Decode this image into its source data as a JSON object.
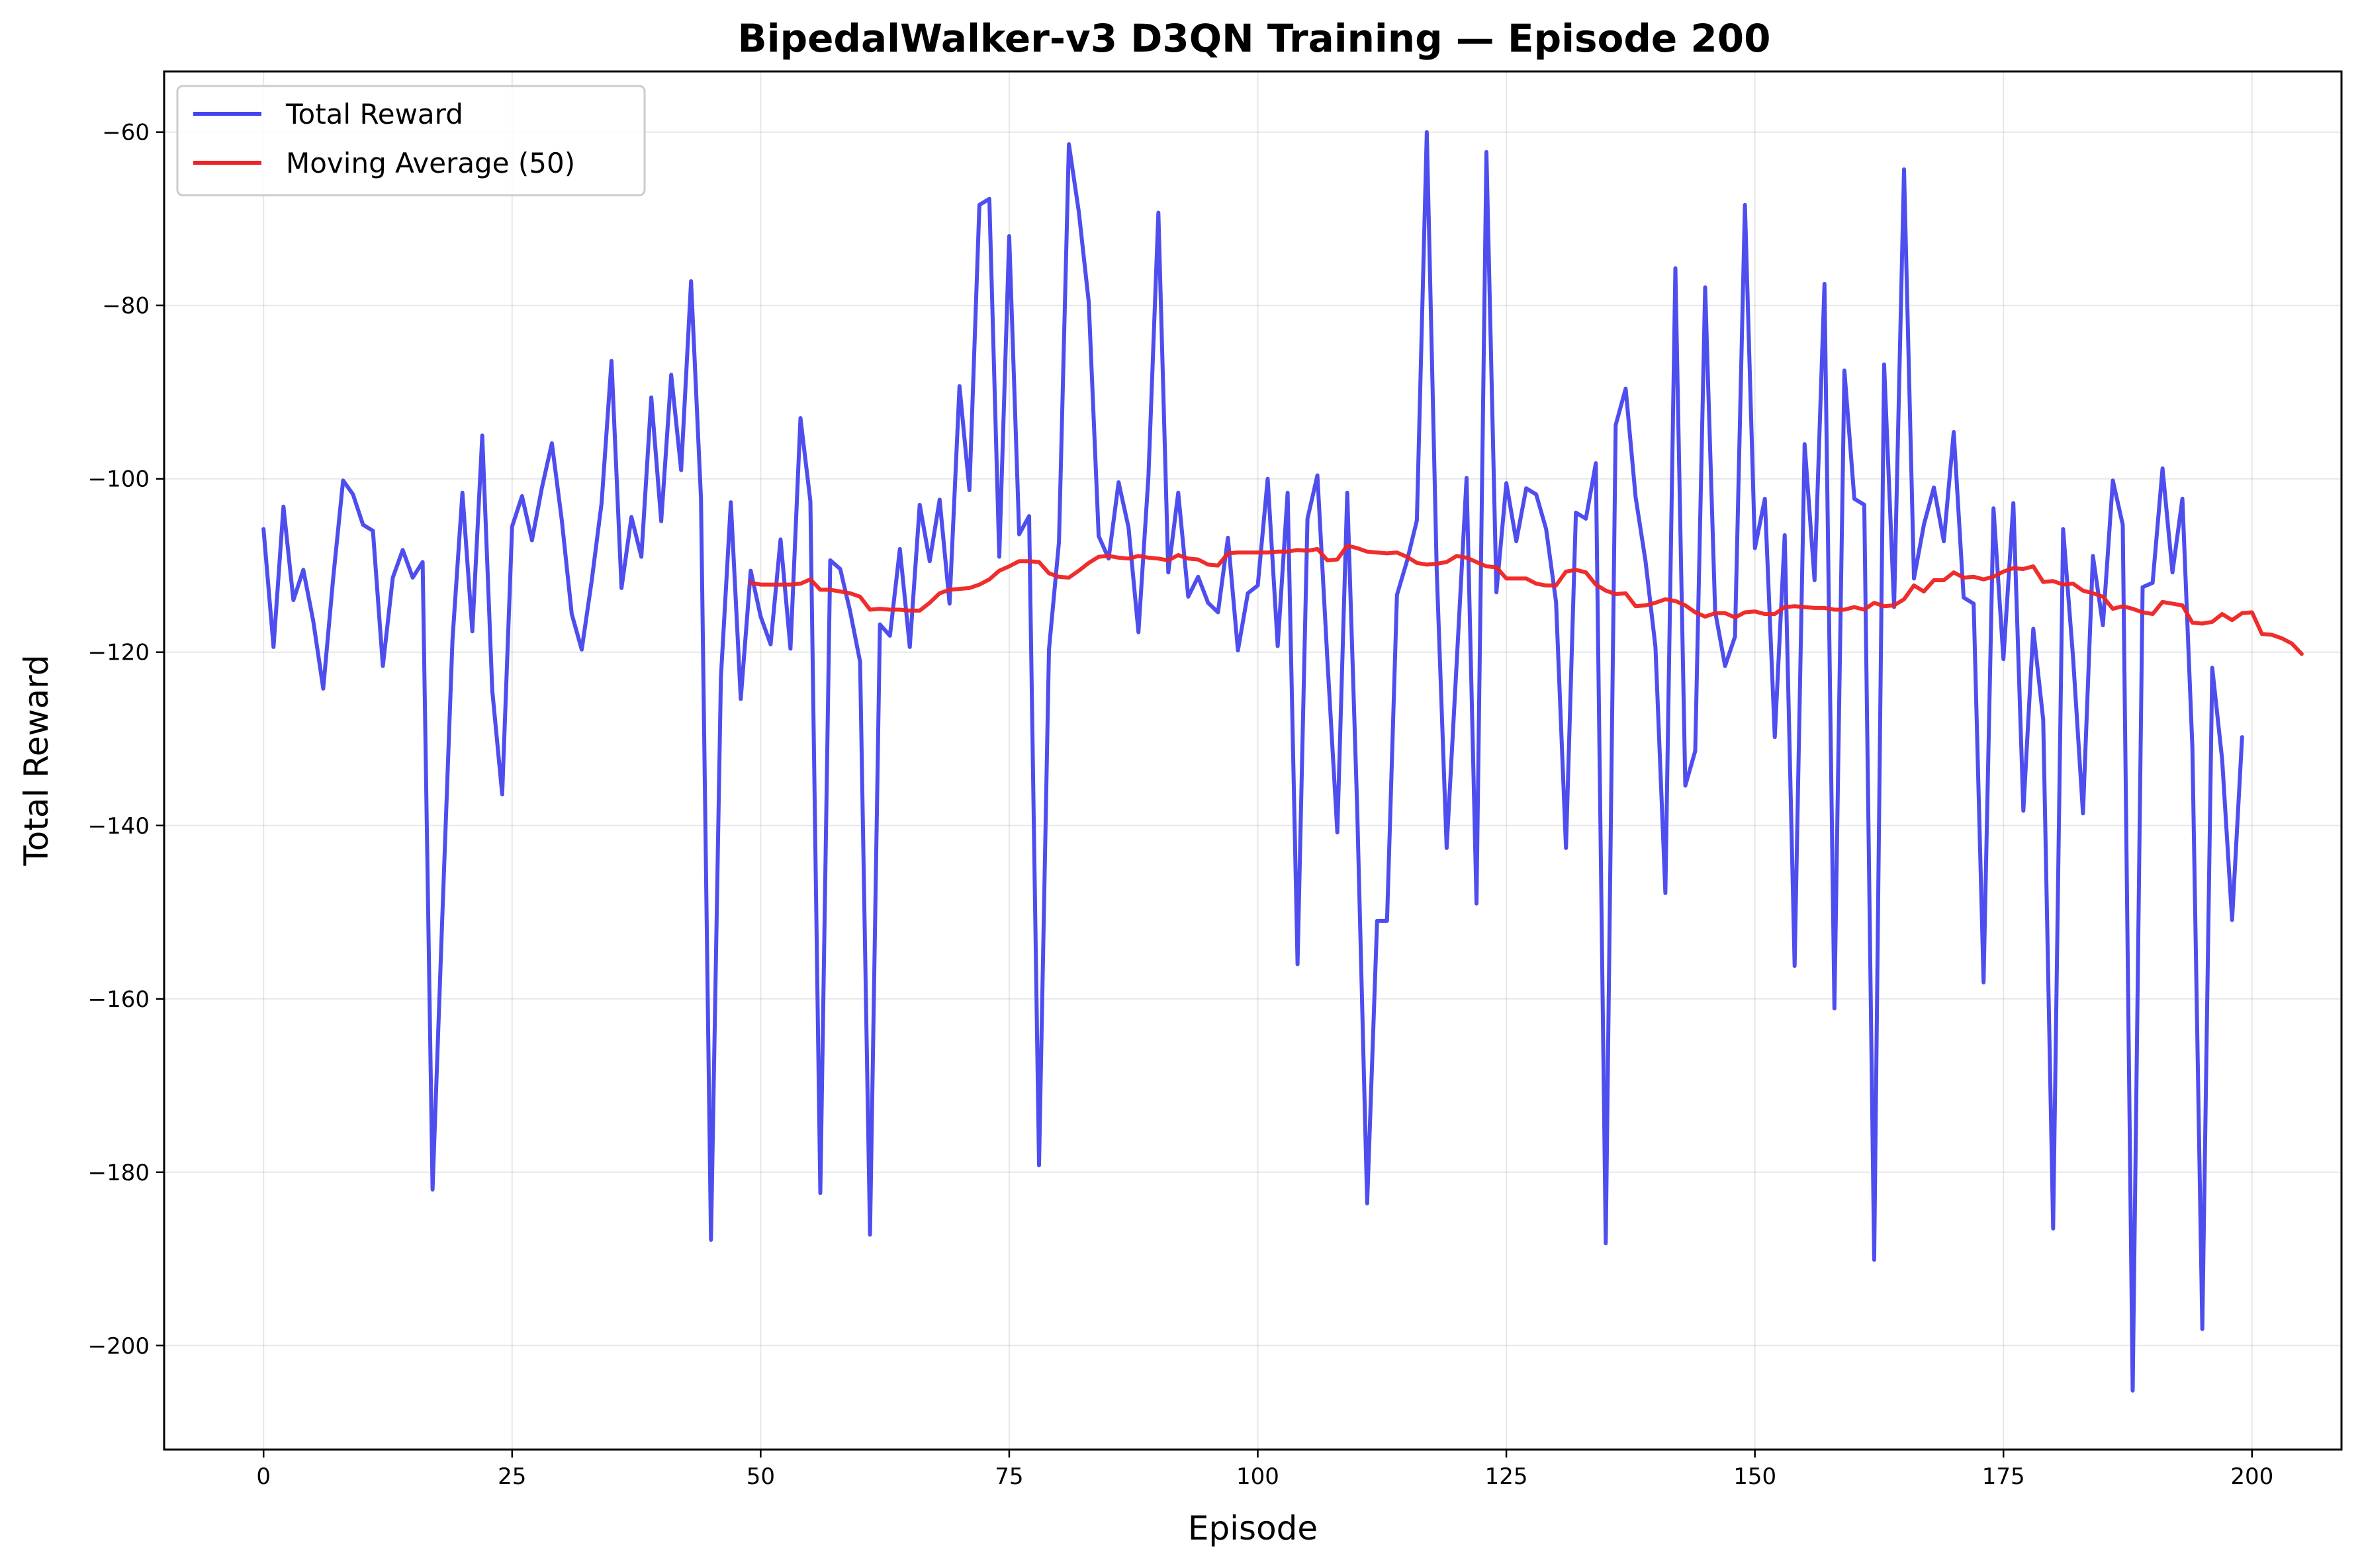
{
  "chart_data": {
    "type": "line",
    "title": "BipedalWalker-v3 D3QN Training — Episode 200",
    "xlabel": "Episode",
    "ylabel": "Total Reward",
    "xlim": [
      -10,
      209
    ],
    "ylim": [
      -212,
      -53
    ],
    "xticks": [
      0,
      25,
      50,
      75,
      100,
      125,
      150,
      175,
      200
    ],
    "yticks": [
      -200,
      -180,
      -160,
      -140,
      -120,
      -100,
      -80,
      -60
    ],
    "grid": true,
    "legend_position": "top-left",
    "series": [
      {
        "name": "Total Reward",
        "color": "#4444ee",
        "x_start": 0,
        "values": [
          -105.8,
          -119.4,
          -103.2,
          -114,
          -110.5,
          -116.4,
          -124.2,
          -111.5,
          -100.2,
          -101.8,
          -105.3,
          -106,
          -121.6,
          -111.4,
          -108.2,
          -111.4,
          -109.6,
          -182,
          -150,
          -118.6,
          -101.6,
          -117.6,
          -95,
          -124.4,
          -136.4,
          -105.5,
          -102,
          -107.1,
          -101,
          -95.9,
          -104.8,
          -115.6,
          -119.7,
          -111.8,
          -102.8,
          -86.4,
          -112.6,
          -104.4,
          -109,
          -90.6,
          -104.9,
          -88,
          -99,
          -77.2,
          -102.3,
          -187.8,
          -122.9,
          -102.7,
          -125.4,
          -110.6,
          -115.9,
          -119.1,
          -107,
          -119.6,
          -93,
          -102.6,
          -182.4,
          -109.4,
          -110.4,
          -115.3,
          -121.1,
          -187.2,
          -116.8,
          -118.1,
          -108.1,
          -119.4,
          -103,
          -109.5,
          -102.4,
          -114.4,
          -89.3,
          -101.3,
          -68.4,
          -67.7,
          -109,
          -72,
          -106.4,
          -104.3,
          -179.2,
          -119.7,
          -107.3,
          -61.4,
          -69.2,
          -79.6,
          -106.6,
          -109.2,
          -100.4,
          -105.6,
          -117.7,
          -99.7,
          -69.3,
          -110.8,
          -101.6,
          -113.6,
          -111.3,
          -114.3,
          -115.4,
          -106.8,
          -119.8,
          -113.2,
          -112.3,
          -100,
          -119.3,
          -101.6,
          -156,
          -104.6,
          -99.6,
          -120.9,
          -140.8,
          -101.6,
          -138,
          -183.6,
          -151,
          -151,
          -113.4,
          -109.5,
          -104.8,
          -60,
          -110.6,
          -142.6,
          -121.3,
          -99.9,
          -149,
          -62.3,
          -113.1,
          -100.5,
          -107.2,
          -101.1,
          -101.8,
          -105.8,
          -114.2,
          -142.6,
          -103.9,
          -104.6,
          -98.2,
          -188.2,
          -93.8,
          -89.6,
          -102.1,
          -109.5,
          -119.4,
          -147.8,
          -75.7,
          -135.4,
          -131.4,
          -77.9,
          -115.3,
          -121.6,
          -118.2,
          -68.4,
          -108,
          -102.3,
          -129.8,
          -106.5,
          -156.2,
          -96,
          -111.7,
          -77.5,
          -161.1,
          -87.5,
          -102.3,
          -103,
          -190.1,
          -86.8,
          -114.8,
          -64.3,
          -111.5,
          -105.3,
          -101,
          -107.2,
          -94.6,
          -113.7,
          -114.4,
          -158.1,
          -103.4,
          -120.8,
          -102.8,
          -138.3,
          -117.3,
          -127.8,
          -186.5,
          -105.8,
          -120.6,
          -138.6,
          -108.9,
          -116.9,
          -100.2,
          -105.3,
          -205.2,
          -112.5,
          -112,
          -98.8,
          -110.8,
          -102.3,
          -131,
          -198.1,
          -121.8,
          -132.4,
          -150.9,
          -129.8
        ]
      },
      {
        "name": "Moving Average (50)",
        "color": "#ee2222",
        "x_start": 49,
        "values": [
          -112,
          -112.2,
          -112.2,
          -112.2,
          -112.2,
          -112.1,
          -111.6,
          -112.8,
          -112.8,
          -113,
          -113.2,
          -113.6,
          -115.1,
          -115,
          -115.1,
          -115.1,
          -115.2,
          -115.2,
          -114.3,
          -113.2,
          -112.8,
          -112.7,
          -112.6,
          -112.2,
          -111.6,
          -110.6,
          -110.1,
          -109.5,
          -109.5,
          -109.6,
          -110.9,
          -111.3,
          -111.4,
          -110.6,
          -109.7,
          -109,
          -108.9,
          -109.1,
          -109.2,
          -108.9,
          -109.1,
          -109.2,
          -109.4,
          -108.8,
          -109.2,
          -109.3,
          -109.9,
          -110,
          -108.6,
          -108.5,
          -108.5,
          -108.5,
          -108.5,
          -108.4,
          -108.4,
          -108.2,
          -108.3,
          -108.1,
          -109.4,
          -109.3,
          -107.7,
          -108,
          -108.4,
          -108.5,
          -108.6,
          -108.5,
          -109,
          -109.7,
          -109.9,
          -109.8,
          -109.6,
          -108.9,
          -109.1,
          -109.6,
          -110.1,
          -110.2,
          -111.5,
          -111.5,
          -111.5,
          -112.1,
          -112.3,
          -112.3,
          -110.7,
          -110.5,
          -110.8,
          -112.2,
          -112.9,
          -113.3,
          -113.2,
          -114.7,
          -114.6,
          -114.3,
          -113.9,
          -114.1,
          -114.6,
          -115.4,
          -115.9,
          -115.5,
          -115.5,
          -116,
          -115.4,
          -115.3,
          -115.6,
          -115.6,
          -114.8,
          -114.7,
          -114.8,
          -114.9,
          -114.9,
          -115.1,
          -115.1,
          -114.8,
          -115.1,
          -114.3,
          -114.7,
          -114.6,
          -113.9,
          -112.3,
          -113,
          -111.7,
          -111.7,
          -110.8,
          -111.4,
          -111.3,
          -111.6,
          -111.3,
          -110.7,
          -110.3,
          -110.4,
          -110.1,
          -111.9,
          -111.8,
          -112.2,
          -112.1,
          -112.9,
          -113.2,
          -113.6,
          -115,
          -114.7,
          -115,
          -115.4,
          -115.6,
          -114.2,
          -114.4,
          -114.6,
          -116.6,
          -116.7,
          -116.5,
          -115.6,
          -116.3,
          -115.5,
          -115.4,
          -117.9,
          -118,
          -118.4,
          -119,
          -120.2
        ]
      }
    ]
  }
}
